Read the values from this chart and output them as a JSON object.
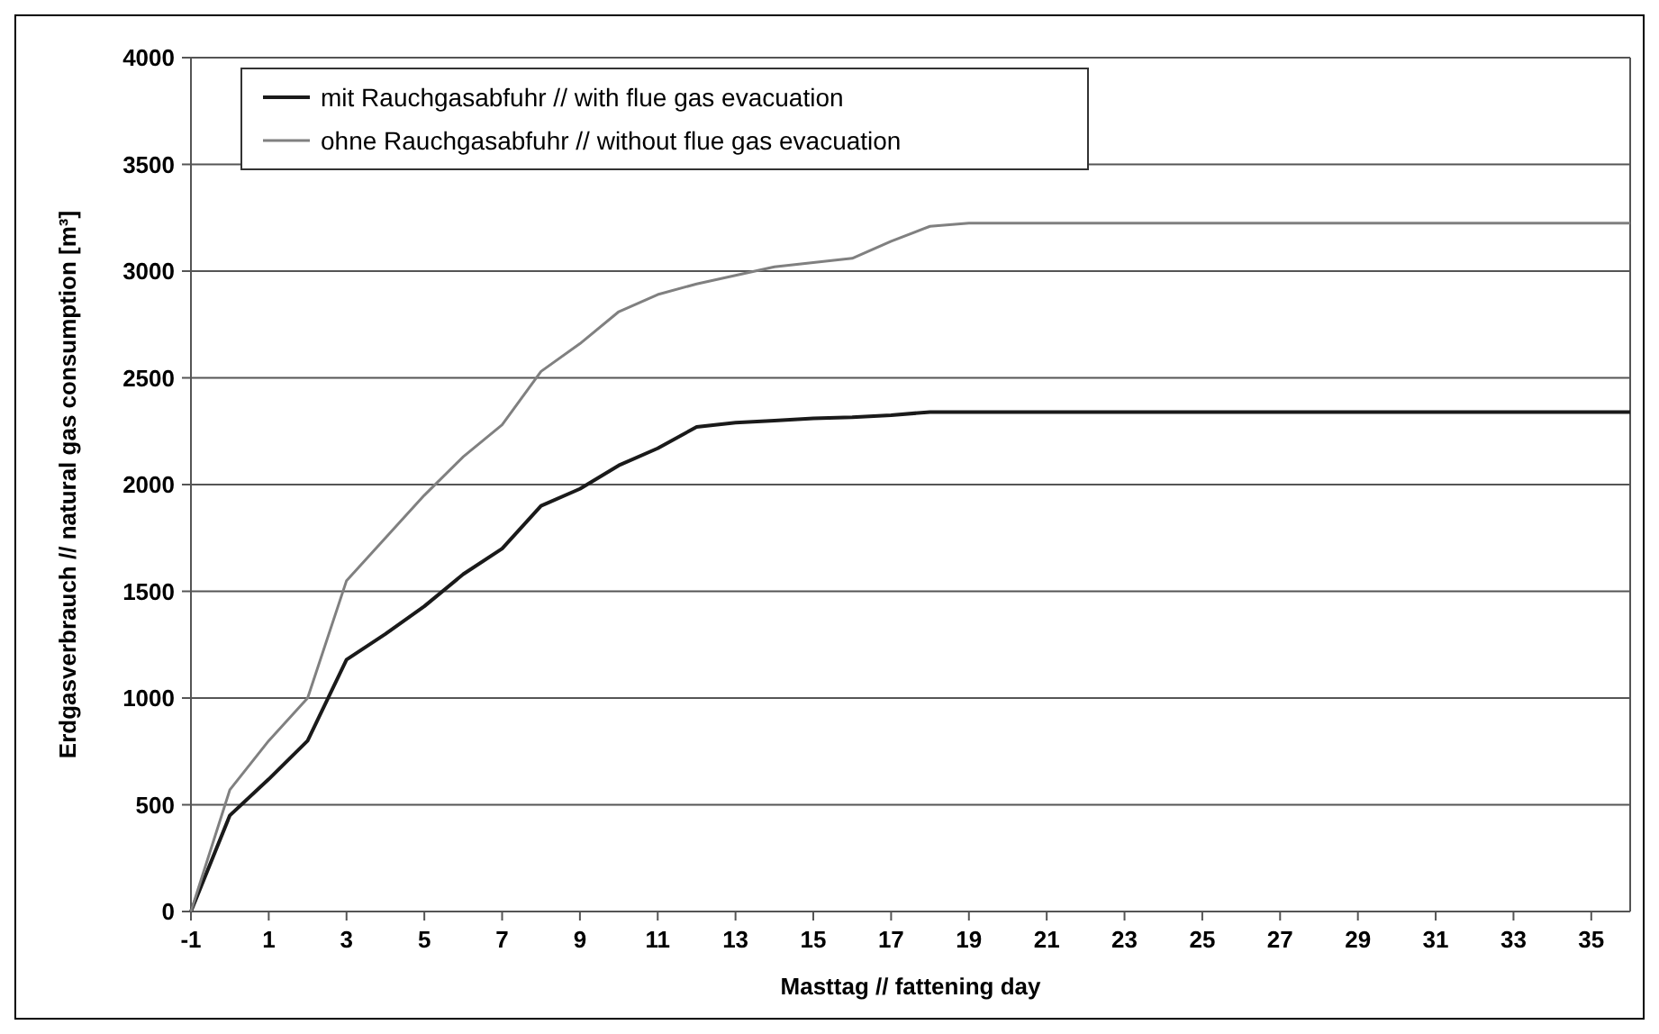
{
  "chart_data": {
    "type": "line",
    "xlabel": "Masttag // fattening day",
    "ylabel": "Erdgasverbrauch // natural gas consumption [m³]",
    "x": [
      -1,
      0,
      1,
      2,
      3,
      4,
      5,
      6,
      7,
      8,
      9,
      10,
      11,
      12,
      13,
      14,
      15,
      16,
      17,
      18,
      19,
      20,
      21,
      22,
      23,
      24,
      25,
      26,
      27,
      28,
      29,
      30,
      31,
      32,
      33,
      34,
      35,
      36
    ],
    "series": [
      {
        "name": "mit Rauchgasabfuhr // with flue gas evacuation",
        "color": "#1a1a1a",
        "values": [
          0,
          450,
          620,
          800,
          1180,
          1300,
          1430,
          1580,
          1700,
          1900,
          1980,
          2090,
          2170,
          2270,
          2290,
          2300,
          2310,
          2315,
          2325,
          2340,
          2340,
          2340,
          2340,
          2340,
          2340,
          2340,
          2340,
          2340,
          2340,
          2340,
          2340,
          2340,
          2340,
          2340,
          2340,
          2340,
          2340,
          2340
        ]
      },
      {
        "name": "ohne Rauchgasabfuhr // without flue gas evacuation",
        "color": "#808080",
        "values": [
          0,
          570,
          800,
          1000,
          1550,
          1750,
          1950,
          2130,
          2280,
          2530,
          2660,
          2810,
          2890,
          2940,
          2980,
          3020,
          3040,
          3060,
          3140,
          3210,
          3225,
          3225,
          3225,
          3225,
          3225,
          3225,
          3225,
          3225,
          3225,
          3225,
          3225,
          3225,
          3225,
          3225,
          3225,
          3225,
          3225,
          3225
        ]
      }
    ],
    "xlim": [
      -1,
      36
    ],
    "xticks": [
      -1,
      1,
      3,
      5,
      7,
      9,
      11,
      13,
      15,
      17,
      19,
      21,
      23,
      25,
      27,
      29,
      31,
      33,
      35
    ],
    "ylim": [
      0,
      4000
    ],
    "yticks": [
      0,
      500,
      1000,
      1500,
      2000,
      2500,
      3000,
      3500,
      4000
    ],
    "grid": "y",
    "legend": "top left",
    "marker": "none",
    "line_style": "solid"
  }
}
